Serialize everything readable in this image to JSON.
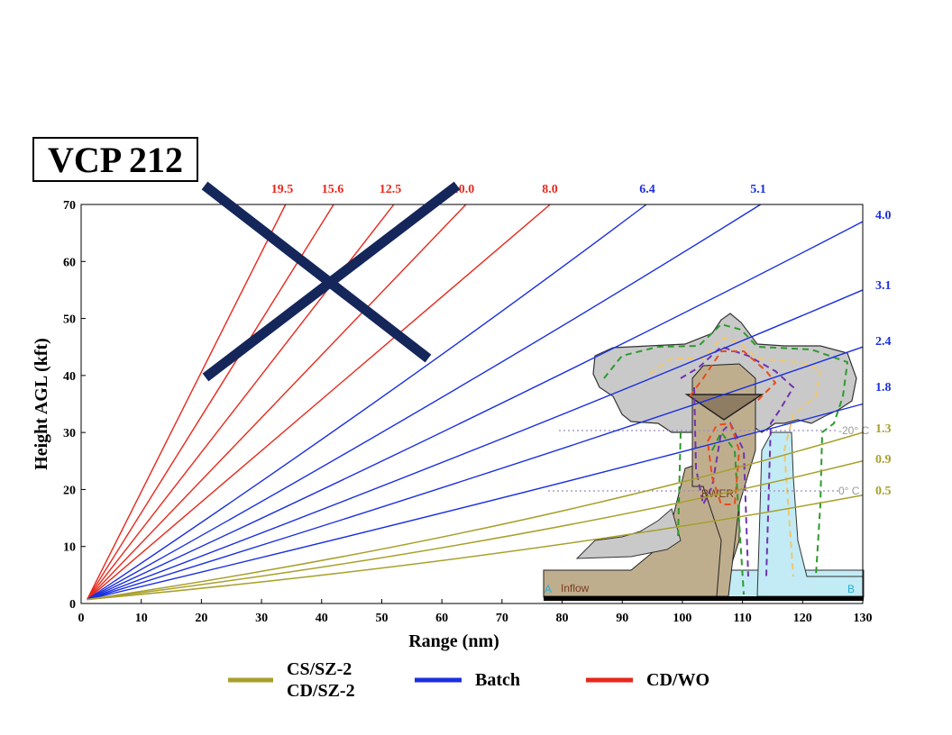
{
  "title": "VCP 212",
  "colors": {
    "cd_wo": "#e8271b",
    "batch": "#1b2fe0",
    "cs_sz": "#a8a02c",
    "cross": "#14265a",
    "axis": "#000000",
    "storm_fill": "#c9c9c9",
    "updraft_fill": "#bfae8e",
    "inflow_fill": "#c2ebf5"
  },
  "chart_data": {
    "type": "line",
    "xlabel": "Range (nm)",
    "ylabel": "Height AGL (kft)",
    "xlim": [
      0,
      130
    ],
    "ylim": [
      0,
      70
    ],
    "xticks": [
      0,
      10,
      20,
      30,
      40,
      50,
      60,
      70,
      80,
      90,
      100,
      110,
      120,
      130
    ],
    "yticks": [
      0,
      10,
      20,
      30,
      40,
      50,
      60,
      70
    ],
    "series": [
      {
        "name": "CD/WO",
        "elevations": [
          19.5,
          15.6,
          12.5,
          10.0,
          8.0
        ],
        "x_at_top": [
          34,
          42,
          52,
          64,
          78
        ]
      },
      {
        "name": "Batch",
        "elevations": [
          6.4,
          5.1,
          4.0,
          3.1,
          2.4,
          1.8
        ],
        "x_at_top": [
          94,
          113,
          130,
          130,
          130,
          130
        ],
        "y_at_right": [
          70,
          70,
          67,
          55,
          45,
          35
        ]
      },
      {
        "name": "CS/SZ-2 CD/SZ-2",
        "elevations": [
          1.3,
          0.9,
          0.5
        ],
        "y_at_right": [
          30,
          25,
          19
        ]
      }
    ],
    "elevation_labels_top": [
      "19.5",
      "15.6",
      "12.5",
      "10.0",
      "8.0",
      "6.4",
      "5.1"
    ],
    "elevation_labels_right": [
      "4.0",
      "3.1",
      "2.4",
      "1.8",
      "1.3",
      "0.9",
      "0.5"
    ],
    "legend": [
      "CS/SZ-2\nCD/SZ-2",
      "Batch",
      "CD/WO"
    ],
    "legend_placement": "bottom",
    "grid": false
  },
  "legend": {
    "cs_line1": "CS/SZ-2",
    "cs_line2": "CD/SZ-2",
    "batch": "Batch",
    "cdwo": "CD/WO"
  },
  "storm": {
    "label_bwer": "BWER",
    "label_inflow": "Inflow",
    "label_a": "A",
    "label_b": "B",
    "temp_upper": "-20° C",
    "temp_lower": "0° C"
  }
}
